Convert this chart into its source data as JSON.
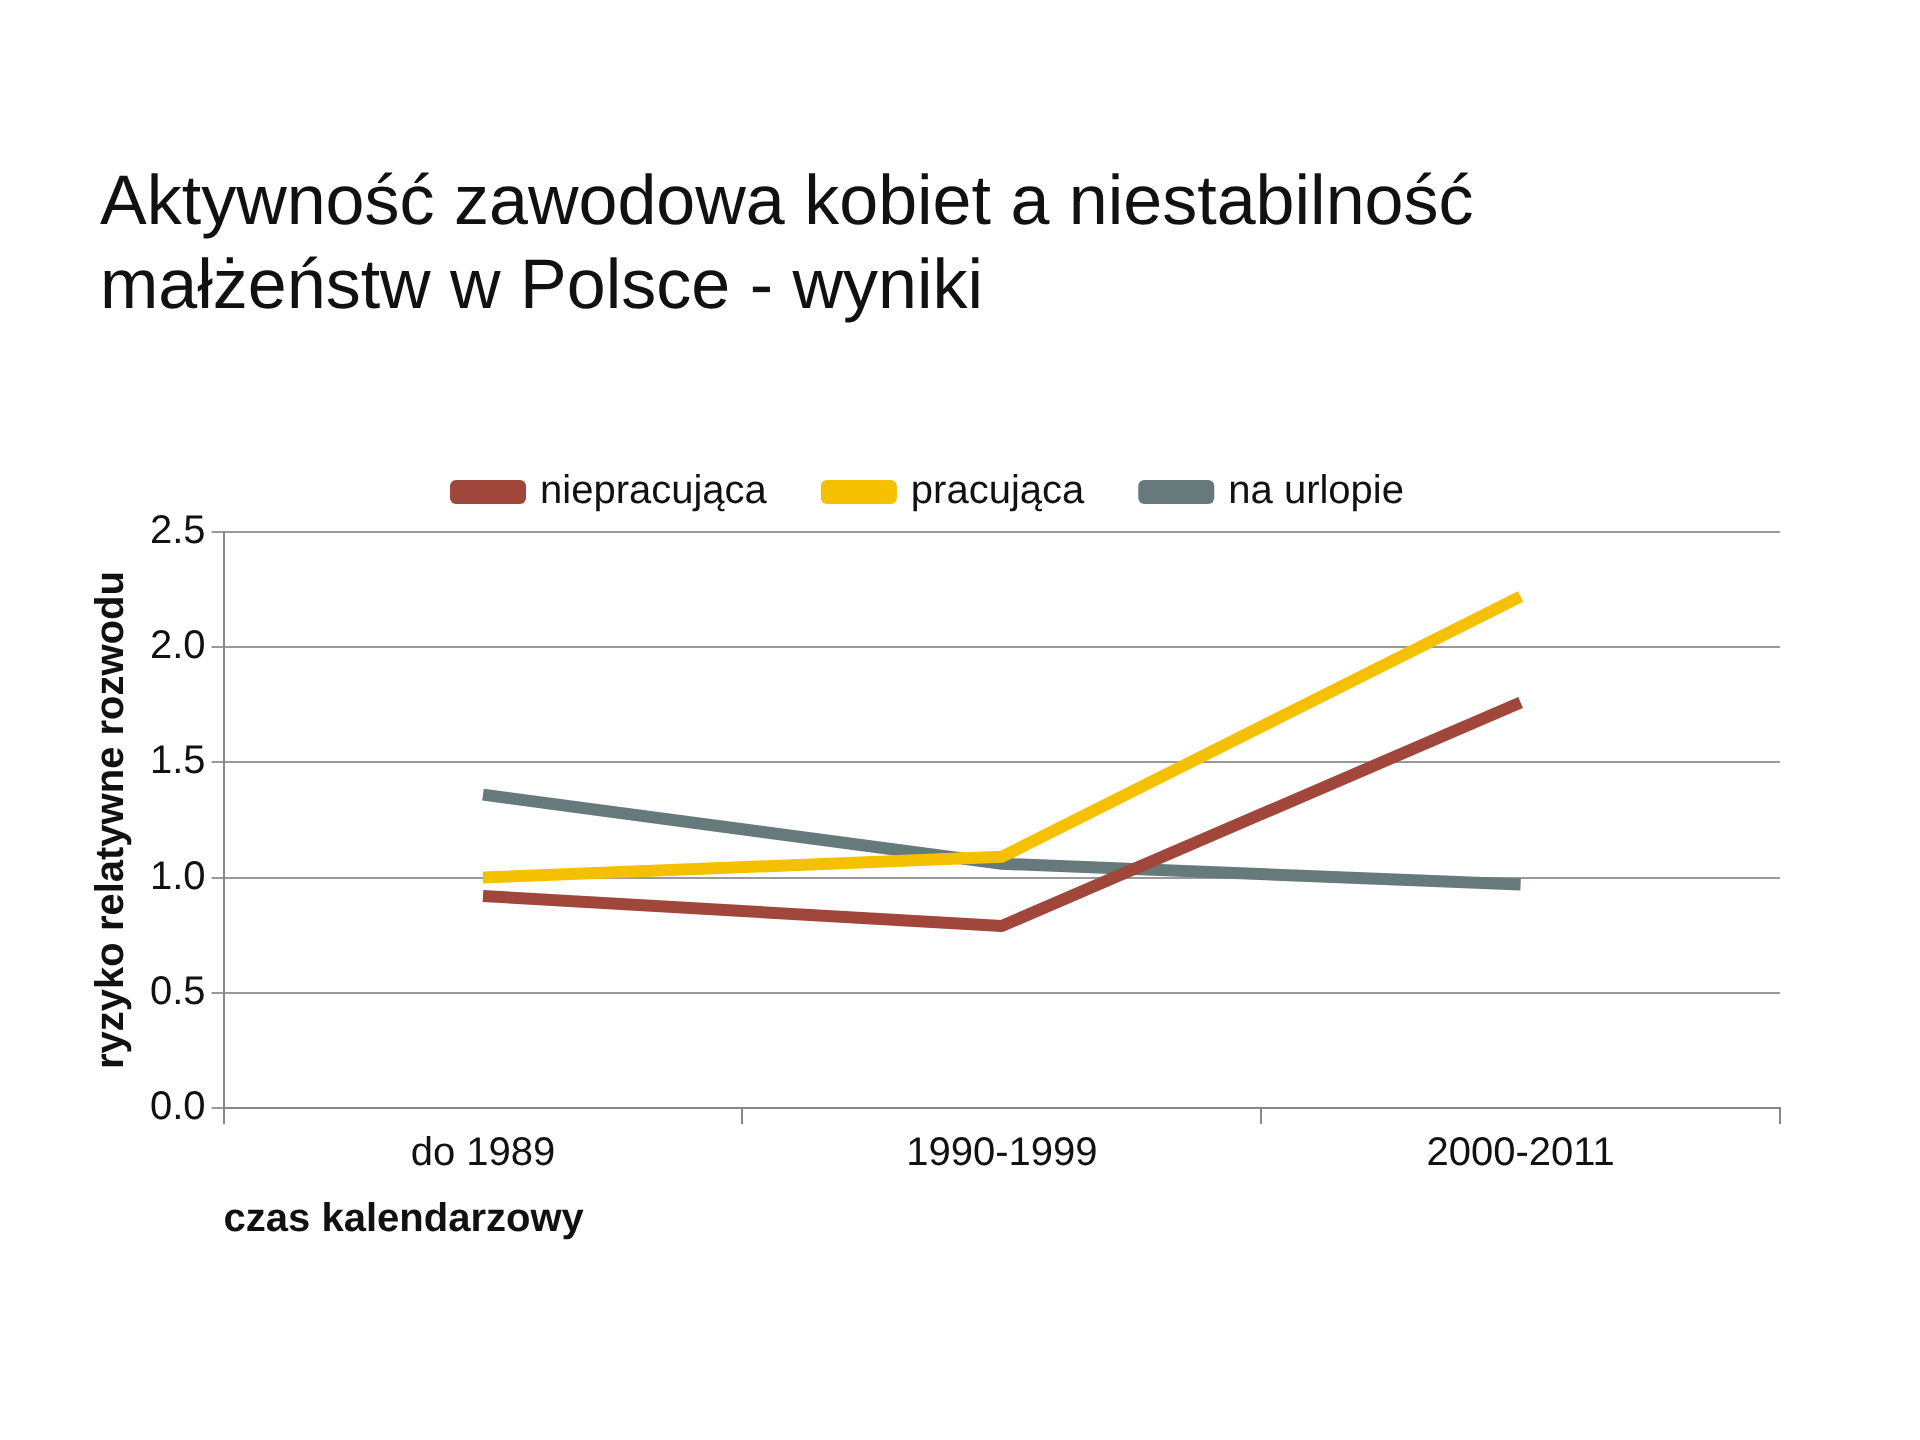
{
  "chart_data": {
    "type": "line",
    "title": "Aktywność zawodowa kobiet a niestabilność małżeństw w Polsce - wyniki",
    "xlabel": "czas kalendarzowy",
    "ylabel": "ryzyko relatywne rozwodu",
    "categories": [
      "do 1989",
      "1990-1999",
      "2000-2011"
    ],
    "series": [
      {
        "name": "niepracująca",
        "color": "#a0463a",
        "values": [
          0.92,
          0.79,
          1.76
        ]
      },
      {
        "name": "pracująca",
        "color": "#f5c000",
        "values": [
          1.0,
          1.09,
          2.22
        ]
      },
      {
        "name": "na urlopie",
        "color": "#66797b",
        "values": [
          1.36,
          1.06,
          0.97
        ]
      }
    ],
    "ylim": [
      0,
      2.5
    ],
    "yticks": [
      {
        "value": 0,
        "label": "0.0"
      },
      {
        "value": 0.5,
        "label": "0.5"
      },
      {
        "value": 1,
        "label": "1.0"
      },
      {
        "value": 1.5,
        "label": "1.5"
      },
      {
        "value": 2,
        "label": "2.0"
      },
      {
        "value": 2.5,
        "label": "2.5"
      }
    ],
    "grid": "y",
    "legend": "top",
    "marker": "none",
    "line_style": "solid"
  }
}
